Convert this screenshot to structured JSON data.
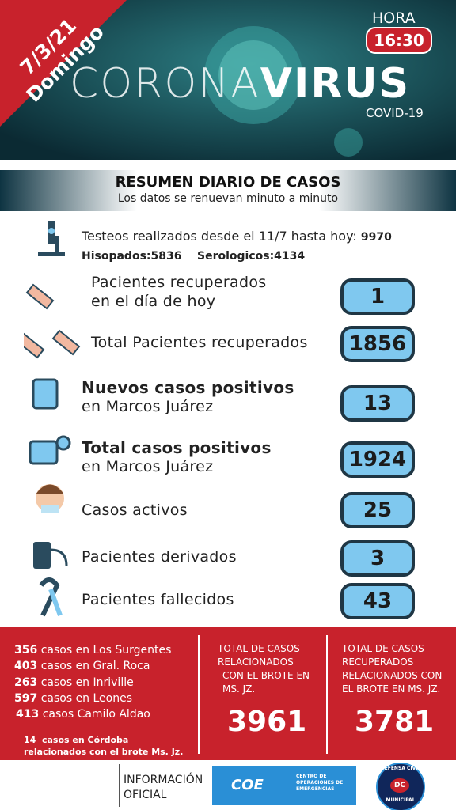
{
  "header": {
    "date": "7/3/21",
    "day": "Domingo",
    "hora_label": "HORA",
    "hora": "16:30",
    "title_a": "CORONA",
    "title_b": "VIRUS",
    "subtitle": "COVID-19"
  },
  "summary": {
    "title": "RESUMEN DIARIO DE CASOS",
    "subtitle": "Los datos se renuevan minuto a minuto"
  },
  "tests": {
    "text": "Testeos realizados desde el 11/7 hasta hoy:",
    "total": 9970,
    "hisopados_label": "Hisopados:",
    "hisopados": 5836,
    "serologicos_label": "Serologicos:",
    "serologicos": 4134
  },
  "rows": [
    {
      "lines": [
        "Pacientes recuperados",
        "en el día de hoy"
      ],
      "value": 1
    },
    {
      "lines": [
        "Total Pacientes recuperados"
      ],
      "value": 1856
    },
    {
      "lines": [
        "Nuevos casos positivos",
        "en Marcos Juárez"
      ],
      "value": 13
    },
    {
      "lines": [
        "Total casos positivos",
        "en Marcos Juárez"
      ],
      "value": 1924
    },
    {
      "lines": [
        "Casos activos"
      ],
      "value": 25
    },
    {
      "lines": [
        "Pacientes derivados"
      ],
      "value": 3
    },
    {
      "lines": [
        "Pacientes fallecidos"
      ],
      "value": 43
    }
  ],
  "localities": [
    {
      "count": 356,
      "text": "casos en Los Surgentes"
    },
    {
      "count": 403,
      "text": "casos en Gral. Roca"
    },
    {
      "count": 263,
      "text": "casos en Inriville"
    },
    {
      "count": 597,
      "text": "casos en Leones"
    },
    {
      "count": 413,
      "text": "casos Camilo Aldao"
    }
  ],
  "cordoba": {
    "count": 14,
    "lines": [
      "casos en Córdoba",
      "relacionados con el brote Ms. Jz."
    ]
  },
  "totals": [
    {
      "lines": [
        "TOTAL DE CASOS",
        "RELACIONADOS",
        "CON EL BROTE EN",
        "MS. JZ."
      ],
      "value": 3961
    },
    {
      "lines": [
        "TOTAL DE CASOS",
        "RECUPERADOS",
        "RELACIONADOS CON",
        "EL BROTE EN  MS. JZ."
      ],
      "value": 3781
    }
  ],
  "footer": {
    "info": [
      "INFORMACIÓN",
      "OFICIAL"
    ],
    "coe": "COE",
    "coe_text": [
      "CENTRO DE",
      "OPERACIONES DE",
      "EMERGENCIAS"
    ],
    "dc": "DC",
    "dc_top": "DEFENSA CIVIL",
    "dc_bottom": "MUNICIPAL"
  }
}
